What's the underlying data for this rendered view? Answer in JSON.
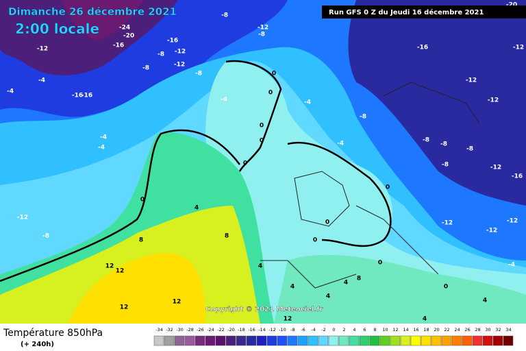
{
  "header": {
    "date": "Dimanche 26 décembre 2021",
    "time": "2:00 locale",
    "run": "Run GFS 0 Z du Jeudi 16 décembre 2021"
  },
  "copyright": "Copyright © 2021 Meteociel.fr",
  "footer": {
    "title": "Température 850hPa",
    "lead": "(+ 240h)"
  },
  "scale": {
    "values": [
      -34,
      -32,
      -30,
      -28,
      -26,
      -24,
      -22,
      -20,
      -18,
      -16,
      -14,
      -12,
      -10,
      -8,
      -6,
      -4,
      -2,
      0,
      2,
      4,
      6,
      8,
      10,
      12,
      14,
      16,
      18,
      20,
      22,
      24,
      26,
      28,
      30,
      32,
      34
    ],
    "colors": [
      "#c8c8c8",
      "#a0a0a0",
      "#8c6496",
      "#9b59a0",
      "#7a2a7a",
      "#6a1a70",
      "#5a0f6a",
      "#4b1f7a",
      "#3a2a8a",
      "#2a2aa0",
      "#2020c0",
      "#1f3ce0",
      "#1e50ff",
      "#1e78ff",
      "#1ea0ff",
      "#30c0ff",
      "#60d8ff",
      "#90f0f0",
      "#70e8c0",
      "#40e0a0",
      "#30d070",
      "#20c040",
      "#60d020",
      "#a0e020",
      "#d8f020",
      "#ffff00",
      "#ffe000",
      "#ffc000",
      "#ffa000",
      "#ff8000",
      "#ff6000",
      "#f03030",
      "#d01010",
      "#a00000",
      "#700000"
    ]
  },
  "contour_labels": [
    -24,
    -20,
    -16,
    -16,
    -8,
    -12,
    -8,
    -12,
    -8,
    -12,
    -8,
    -8,
    -16,
    -12,
    -12,
    -4,
    -4,
    -16,
    -16,
    -4,
    0,
    0,
    0,
    0,
    -4,
    -12,
    -8,
    -12,
    -4,
    -8,
    -8,
    -8,
    -8,
    -12,
    -16,
    0,
    0,
    -4,
    -4,
    0,
    4,
    -12,
    -8,
    8,
    8,
    0,
    0,
    12,
    12,
    12,
    12,
    4,
    4,
    4,
    4,
    8,
    0,
    0,
    -12,
    -12,
    -12,
    -4,
    4,
    12,
    4,
    -20
  ]
}
